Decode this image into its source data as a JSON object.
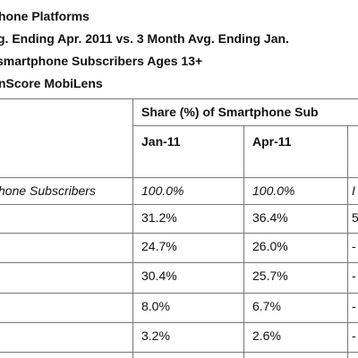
{
  "header": {
    "lines": [
      "hone Platforms",
      "g. Ending Apr. 2011 vs. 3 Month Avg. Ending Jan.",
      "smartphone Subscribers Ages 13+",
      "nScore MobiLens"
    ]
  },
  "table": {
    "group_header": "Share (%) of Smartphone Sub",
    "columns": [
      "Jan-11",
      "Apr-11"
    ],
    "rows": [
      [
        "hone Subscribers",
        "100.0%",
        "100.0%",
        "I"
      ],
      [
        "31.2%",
        "36.4%",
        "5"
      ],
      [
        "24.7%",
        "26.0%",
        "-"
      ],
      [
        "30.4%",
        "25.7%",
        "-"
      ],
      [
        "8.0%",
        "6.7%",
        "-"
      ],
      [
        "3.2%",
        "2.6%",
        "-"
      ]
    ]
  }
}
